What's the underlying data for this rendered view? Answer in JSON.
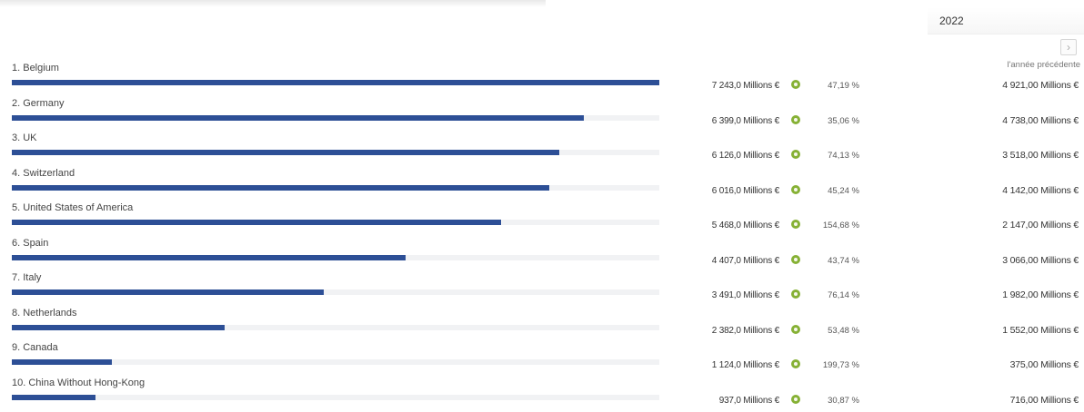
{
  "year_select": {
    "value": "2022"
  },
  "nav": {
    "next_icon": "chevron-right-icon",
    "next_glyph": "›"
  },
  "prev_year_label": "l'année précédente",
  "colors": {
    "bar": "#2d4f96",
    "track": "#f1f2f4",
    "growth_dot": "#86b135"
  },
  "chart_data": {
    "type": "bar",
    "orientation": "horizontal",
    "unit": "Millions €",
    "categories": [
      "1. Belgium",
      "2. Germany",
      "3. UK",
      "4. Switzerland",
      "5. United States of America",
      "6. Spain",
      "7. Italy",
      "8. Netherlands",
      "9. Canada",
      "10. China Without Hong-Kong"
    ],
    "values": [
      7243.0,
      6399.0,
      6126.0,
      6016.0,
      5468.0,
      4407.0,
      3491.0,
      2382.0,
      1124.0,
      937.0
    ],
    "value_labels": [
      "7 243,0 Millions €",
      "6 399,0 Millions €",
      "6 126,0 Millions €",
      "6 016,0 Millions €",
      "5 468,0 Millions €",
      "4 407,0 Millions €",
      "3 491,0 Millions €",
      "2 382,0 Millions €",
      "1 124,0 Millions €",
      "937,0 Millions €"
    ],
    "growth_labels": [
      "47,19 %",
      "35,06 %",
      "74,13 %",
      "45,24 %",
      "154,68 %",
      "43,74 %",
      "76,14 %",
      "53,48 %",
      "199,73 %",
      "30,87 %"
    ],
    "previous_year_values": [
      4921.0,
      4738.0,
      3518.0,
      4142.0,
      2147.0,
      3066.0,
      1982.0,
      1552.0,
      375.0,
      716.0
    ],
    "previous_year_labels": [
      "4 921,00 Millions €",
      "4 738,00 Millions €",
      "3 518,00 Millions €",
      "4 142,00 Millions €",
      "2 147,00 Millions €",
      "3 066,00 Millions €",
      "1 982,00 Millions €",
      "1 552,00 Millions €",
      "375,00 Millions €",
      "716,00 Millions €"
    ],
    "xlim": [
      0,
      7243.0
    ]
  }
}
